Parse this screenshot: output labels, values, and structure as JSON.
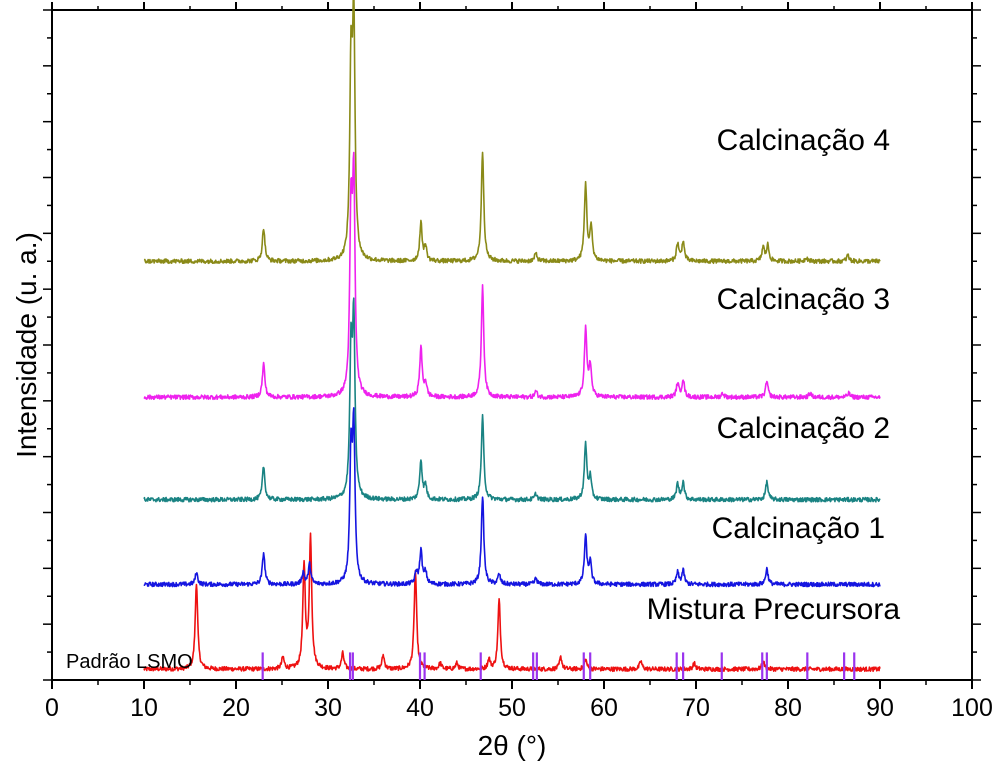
{
  "chart_data": {
    "type": "line",
    "title": "",
    "xlabel": "2θ (°)",
    "ylabel": "Intensidade (u. a.)",
    "xlim": [
      0,
      100
    ],
    "xticks": [
      0,
      10,
      20,
      30,
      40,
      50,
      60,
      70,
      80,
      90,
      100
    ],
    "yticks_labeled": false,
    "grid": false,
    "legend": "none",
    "series": [
      {
        "name": "Mistura Precursora",
        "color": "#ee1111",
        "baseline": 0.55,
        "peaks": [
          [
            15.7,
            4.4
          ],
          [
            25.1,
            0.6
          ],
          [
            27.4,
            5.2
          ],
          [
            28.1,
            6.6
          ],
          [
            31.6,
            0.8
          ],
          [
            36.0,
            0.7
          ],
          [
            39.5,
            5.0
          ],
          [
            42.2,
            0.3
          ],
          [
            44.0,
            0.3
          ],
          [
            47.5,
            0.5
          ],
          [
            48.6,
            3.5
          ],
          [
            55.3,
            0.6
          ],
          [
            58.0,
            0.5
          ],
          [
            64.0,
            0.4
          ],
          [
            69.8,
            0.3
          ],
          [
            77.3,
            0.4
          ]
        ]
      },
      {
        "name": "Calcinação 1",
        "color": "#1515e0",
        "baseline": 4.85,
        "peaks": [
          [
            15.7,
            0.6
          ],
          [
            23.0,
            1.6
          ],
          [
            27.3,
            0.6
          ],
          [
            28.0,
            1.0
          ],
          [
            32.5,
            6.2
          ],
          [
            32.8,
            7.5
          ],
          [
            39.6,
            0.6
          ],
          [
            40.1,
            1.7
          ],
          [
            40.6,
            0.6
          ],
          [
            46.8,
            4.5
          ],
          [
            48.6,
            0.5
          ],
          [
            52.6,
            0.3
          ],
          [
            58.0,
            2.4
          ],
          [
            58.5,
            1.1
          ],
          [
            68.0,
            0.6
          ],
          [
            68.6,
            0.7
          ],
          [
            77.7,
            0.8
          ]
        ]
      },
      {
        "name": "Calcinação 2",
        "color": "#1a8383",
        "baseline": 9.15,
        "peaks": [
          [
            23.0,
            1.7
          ],
          [
            32.5,
            7.0
          ],
          [
            32.8,
            8.6
          ],
          [
            40.1,
            2.0
          ],
          [
            40.6,
            0.7
          ],
          [
            46.8,
            4.2
          ],
          [
            52.6,
            0.3
          ],
          [
            58.0,
            2.8
          ],
          [
            58.5,
            1.1
          ],
          [
            68.0,
            0.8
          ],
          [
            68.6,
            0.9
          ],
          [
            77.7,
            0.9
          ]
        ]
      },
      {
        "name": "Calcinação 3",
        "color": "#ee22ee",
        "baseline": 14.35,
        "peaks": [
          [
            23.0,
            1.7
          ],
          [
            32.5,
            8.8
          ],
          [
            32.8,
            10.5
          ],
          [
            40.1,
            2.5
          ],
          [
            40.6,
            0.7
          ],
          [
            46.8,
            5.6
          ],
          [
            52.6,
            0.3
          ],
          [
            58.0,
            3.4
          ],
          [
            58.5,
            1.6
          ],
          [
            68.0,
            0.7
          ],
          [
            68.6,
            0.9
          ],
          [
            72.9,
            0.2
          ],
          [
            77.7,
            0.8
          ],
          [
            82.4,
            0.2
          ],
          [
            86.6,
            0.2
          ]
        ]
      },
      {
        "name": "Calcinação 4",
        "color": "#8a8a18",
        "baseline": 21.25,
        "peaks": [
          [
            23.0,
            1.7
          ],
          [
            32.5,
            9.3
          ],
          [
            32.8,
            11.9
          ],
          [
            40.1,
            1.9
          ],
          [
            40.6,
            0.7
          ],
          [
            46.8,
            5.6
          ],
          [
            52.6,
            0.4
          ],
          [
            58.0,
            3.9
          ],
          [
            58.6,
            1.7
          ],
          [
            68.0,
            0.9
          ],
          [
            68.6,
            1.0
          ],
          [
            77.3,
            0.7
          ],
          [
            77.8,
            0.8
          ],
          [
            82.0,
            0.2
          ],
          [
            86.5,
            0.3
          ]
        ]
      }
    ],
    "reference_pattern": {
      "name": "Padrão LSMO",
      "color": "#9a33ee",
      "height": 1.4,
      "positions": [
        22.9,
        32.4,
        32.7,
        40.0,
        40.5,
        46.6,
        52.3,
        52.7,
        57.8,
        58.5,
        67.9,
        68.6,
        72.8,
        77.2,
        77.7,
        82.1,
        86.1,
        87.2
      ]
    },
    "annotations": [
      "Mistura Precursora",
      "Calcinação 1",
      "Calcinação 2",
      "Calcinação 3",
      "Calcinação 4"
    ]
  }
}
